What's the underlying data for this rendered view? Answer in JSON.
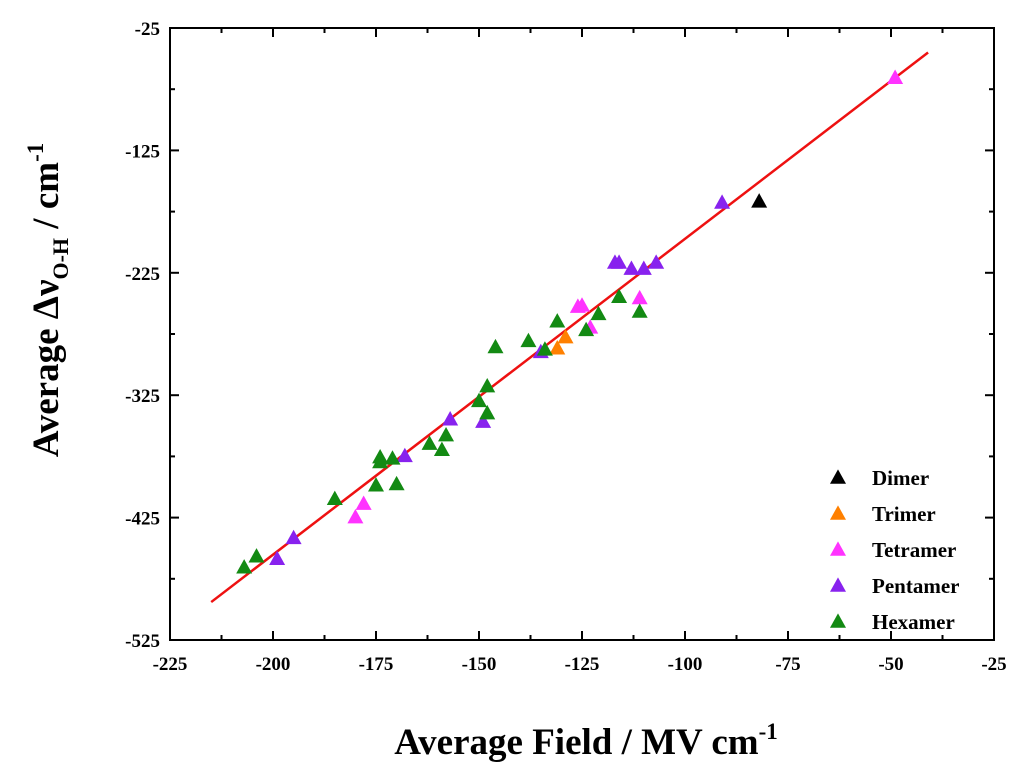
{
  "chart_data": {
    "type": "scatter",
    "xlabel": {
      "main": "Average Field / MV cm",
      "sup": "-1"
    },
    "ylabel": {
      "pre": "Average ",
      "delta": "Δ",
      "nu": "ν",
      "sub": "O-H",
      "post": " / cm",
      "sup": "-1"
    },
    "xlim": [
      -225,
      -25
    ],
    "ylim": [
      -525,
      -25
    ],
    "x_ticks": [
      -225,
      -200,
      -175,
      -150,
      -125,
      -100,
      -75,
      -50,
      -25
    ],
    "y_ticks": [
      -525,
      -425,
      -325,
      -225,
      -125,
      -25
    ],
    "legend_position": "bottom-right",
    "fit_line": {
      "color": "#ee1111",
      "x": [
        -215,
        -41
      ],
      "y": [
        -494,
        -45
      ]
    },
    "series": [
      {
        "name": "Dimer",
        "color": "#000000",
        "marker": "triangle",
        "points": [
          [
            -82,
            -167
          ]
        ]
      },
      {
        "name": "Trimer",
        "color": "#ff8000",
        "marker": "triangle",
        "points": [
          [
            -131,
            -287
          ],
          [
            -129,
            -278
          ]
        ]
      },
      {
        "name": "Tetramer",
        "color": "#ff33ff",
        "marker": "triangle",
        "points": [
          [
            -49,
            -66
          ],
          [
            -126,
            -253
          ],
          [
            -125,
            -252
          ],
          [
            -111,
            -246
          ],
          [
            -123,
            -270
          ],
          [
            -178,
            -414
          ],
          [
            -180,
            -425
          ]
        ]
      },
      {
        "name": "Pentamer",
        "color": "#8822ee",
        "marker": "triangle",
        "points": [
          [
            -91,
            -168
          ],
          [
            -117,
            -217
          ],
          [
            -116,
            -217
          ],
          [
            -113,
            -222
          ],
          [
            -110,
            -222
          ],
          [
            -107,
            -217
          ],
          [
            -135,
            -290
          ],
          [
            -157,
            -345
          ],
          [
            -149,
            -347
          ],
          [
            -168,
            -375
          ],
          [
            -195,
            -442
          ],
          [
            -199,
            -459
          ]
        ]
      },
      {
        "name": "Hexamer",
        "color": "#138a13",
        "marker": "triangle",
        "points": [
          [
            -207,
            -466
          ],
          [
            -204,
            -457
          ],
          [
            -185,
            -410
          ],
          [
            -175,
            -399
          ],
          [
            -170,
            -398
          ],
          [
            -174,
            -380
          ],
          [
            -174,
            -376
          ],
          [
            -171,
            -377
          ],
          [
            -162,
            -365
          ],
          [
            -159,
            -370
          ],
          [
            -158,
            -358
          ],
          [
            -148,
            -340
          ],
          [
            -148,
            -318
          ],
          [
            -150,
            -330
          ],
          [
            -146,
            -286
          ],
          [
            -138,
            -281
          ],
          [
            -134,
            -288
          ],
          [
            -131,
            -265
          ],
          [
            -124,
            -272
          ],
          [
            -121,
            -259
          ],
          [
            -116,
            -245
          ],
          [
            -111,
            -257
          ]
        ]
      }
    ]
  }
}
